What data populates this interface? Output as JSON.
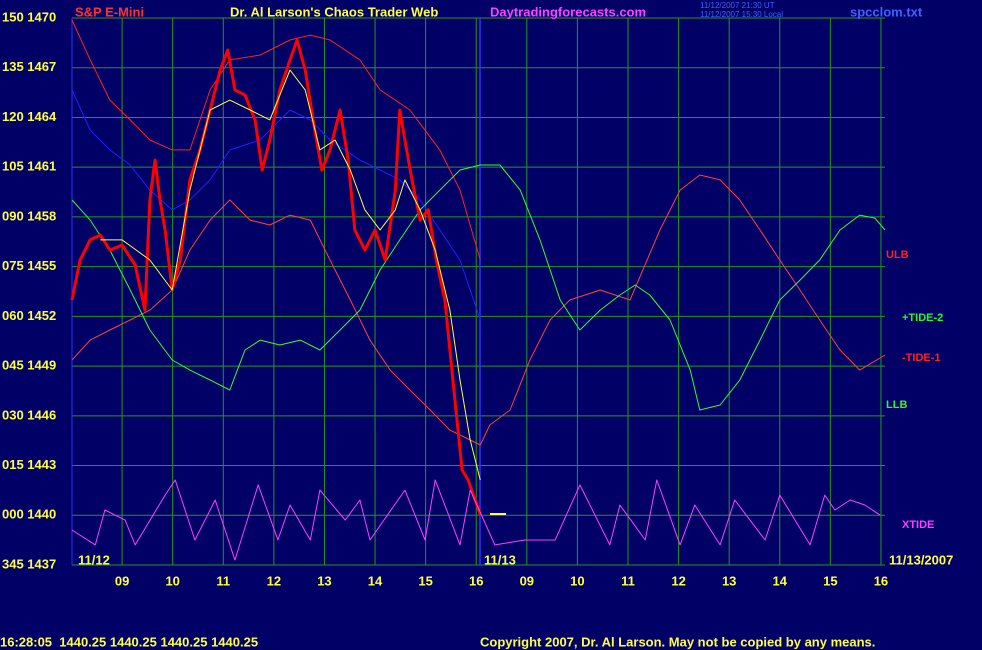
{
  "chart_data": {
    "type": "line",
    "instrument": "S&P E-Mini",
    "title": "Dr. Al Larson's Chaos Trader Web",
    "website": "Daytradingforecasts.com",
    "timestamp_lines": [
      "11/12/2007 21:30 UT",
      "11/12/2007 15:30 Local"
    ],
    "file": "spcclom.txt",
    "date_labels": [
      "11/12",
      "11/13",
      "11/13/2007"
    ],
    "status_line": "16:28:05  1440.25 1440.25 1440.25 1440.25",
    "copyright": "Copyright 2007, Dr. Al Larson. May not be copied by any means.",
    "annotations": [
      {
        "text": "ULB",
        "color": "#ff2020"
      },
      {
        "text": "+TIDE-2",
        "color": "#20ff20"
      },
      {
        "text": "-TIDE-1",
        "color": "#ff2020"
      },
      {
        "text": "LLB",
        "color": "#20ff20"
      },
      {
        "text": "XTIDE",
        "color": "#ff40ff"
      }
    ],
    "grid": true,
    "grid_color": "#1f9a1f",
    "xlim": [
      -0.99,
      15.08
    ],
    "ylim": [
      1437,
      1470
    ],
    "xticks": [
      {
        "value": 0,
        "label": "09"
      },
      {
        "value": 1,
        "label": "10"
      },
      {
        "value": 2,
        "label": "11"
      },
      {
        "value": 3,
        "label": "12"
      },
      {
        "value": 4,
        "label": "13"
      },
      {
        "value": 5,
        "label": "14"
      },
      {
        "value": 6,
        "label": "15"
      },
      {
        "value": 7,
        "label": "16"
      },
      {
        "value": 8,
        "label": "09"
      },
      {
        "value": 9,
        "label": "10"
      },
      {
        "value": 10,
        "label": "11"
      },
      {
        "value": 11,
        "label": "12"
      },
      {
        "value": 12,
        "label": "13"
      },
      {
        "value": 13,
        "label": "14"
      },
      {
        "value": 14,
        "label": "15"
      },
      {
        "value": 15,
        "label": "16"
      }
    ],
    "yticks": [
      {
        "value": 1470,
        "label": "150 1470"
      },
      {
        "value": 1467,
        "label": "135 1467"
      },
      {
        "value": 1464,
        "label": "120 1464"
      },
      {
        "value": 1461,
        "label": "105 1461"
      },
      {
        "value": 1458,
        "label": "090 1458"
      },
      {
        "value": 1455,
        "label": "075 1455"
      },
      {
        "value": 1452,
        "label": "060 1452"
      },
      {
        "value": 1449,
        "label": "045 1449"
      },
      {
        "value": 1446,
        "label": "030 1446"
      },
      {
        "value": 1443,
        "label": "015 1443"
      },
      {
        "value": 1440,
        "label": "000 1440"
      },
      {
        "value": 1437,
        "label": "345 1437"
      }
    ],
    "series": [
      {
        "color": "#ff4040",
        "width": 1,
        "x": [
          -0.99,
          -0.63,
          -0.24,
          0.16,
          0.55,
          0.99,
          1.34,
          1.74,
          2.13,
          2.53,
          2.92,
          3.32,
          3.72,
          4.11,
          4.51,
          4.9,
          5.3,
          5.69,
          6.09,
          6.48,
          6.88,
          7.08,
          7.27,
          7.67,
          8.06,
          8.46,
          8.85,
          9.45,
          10.04,
          10.63,
          11.03,
          11.42,
          11.82,
          12.21,
          12.61,
          13.0,
          13.4,
          13.79,
          14.19,
          14.58,
          15.08
        ],
        "values": [
          1449.37,
          1450.57,
          1451.18,
          1451.78,
          1452.38,
          1453.59,
          1456.0,
          1457.81,
          1459.02,
          1457.81,
          1457.51,
          1458.11,
          1457.81,
          1455.4,
          1452.99,
          1450.57,
          1448.76,
          1447.56,
          1446.35,
          1445.14,
          1444.54,
          1444.24,
          1445.45,
          1446.35,
          1449.37,
          1451.78,
          1452.99,
          1453.59,
          1452.99,
          1457.21,
          1459.62,
          1460.53,
          1460.23,
          1459.02,
          1457.21,
          1455.4,
          1453.59,
          1451.78,
          1449.97,
          1448.76,
          1449.67
        ]
      },
      {
        "color": "#ff2020",
        "width": 1,
        "x": [
          -0.99,
          -0.63,
          -0.24,
          0.16,
          0.55,
          0.99,
          1.34,
          1.74,
          2.13,
          2.73,
          3.32,
          3.72,
          4.11,
          4.7,
          5.1,
          5.69,
          6.28,
          6.68,
          7.08
        ],
        "values": [
          1469.88,
          1467.47,
          1465.05,
          1463.85,
          1462.64,
          1462.04,
          1462.04,
          1465.66,
          1467.47,
          1467.77,
          1468.67,
          1468.97,
          1468.67,
          1467.47,
          1465.66,
          1464.45,
          1462.04,
          1459.62,
          1455.4
        ]
      },
      {
        "color": "#30ff30",
        "width": 1,
        "x": [
          -0.99,
          -0.63,
          -0.24,
          0.16,
          0.55,
          0.99,
          1.34,
          1.74,
          2.13,
          2.43,
          2.73,
          3.12,
          3.52,
          3.91,
          4.31,
          4.7,
          5.1,
          5.49,
          5.89,
          6.28,
          6.68,
          7.08,
          7.47,
          7.87,
          8.26,
          8.66,
          9.05,
          9.45,
          9.84,
          10.14,
          10.43,
          10.83,
          11.23,
          11.42,
          11.82,
          12.21,
          12.61,
          13.0,
          13.4,
          13.79,
          14.19,
          14.58,
          14.88,
          15.08
        ],
        "values": [
          1459.02,
          1457.81,
          1456.0,
          1453.59,
          1451.18,
          1449.37,
          1448.76,
          1448.16,
          1447.56,
          1449.97,
          1450.57,
          1450.27,
          1450.57,
          1449.97,
          1451.18,
          1452.38,
          1454.8,
          1456.61,
          1458.42,
          1459.62,
          1460.83,
          1461.13,
          1461.13,
          1459.62,
          1456.61,
          1452.99,
          1451.18,
          1452.38,
          1453.29,
          1453.89,
          1453.29,
          1451.78,
          1448.76,
          1446.35,
          1446.65,
          1448.16,
          1450.57,
          1452.99,
          1454.19,
          1455.4,
          1457.21,
          1458.11,
          1457.93,
          1457.21
        ]
      },
      {
        "color": "#2020ff",
        "width": 1,
        "x": [
          -0.99,
          -0.63,
          -0.24,
          0.16,
          0.55,
          0.99,
          1.34,
          1.74,
          2.13,
          2.73,
          3.32,
          3.72,
          4.11,
          4.7,
          5.1,
          5.49,
          5.89,
          6.28,
          6.68,
          7.08
        ],
        "values": [
          1465.66,
          1463.24,
          1462.04,
          1461.13,
          1459.62,
          1458.42,
          1459.02,
          1460.23,
          1462.04,
          1462.64,
          1464.45,
          1463.85,
          1462.64,
          1461.43,
          1460.83,
          1460.23,
          1459.02,
          1457.21,
          1455.4,
          1451.78
        ]
      },
      {
        "color": "#ff0000",
        "width": 3,
        "x": [
          -0.99,
          -0.83,
          -0.63,
          -0.43,
          -0.24,
          0,
          0.26,
          0.45,
          0.55,
          0.65,
          0.75,
          0.85,
          0.99,
          1.15,
          1.34,
          1.54,
          1.74,
          1.94,
          2.09,
          2.23,
          2.43,
          2.63,
          2.77,
          2.92,
          3.12,
          3.32,
          3.46,
          3.62,
          3.81,
          3.95,
          4.11,
          4.31,
          4.47,
          4.6,
          4.8,
          5.0,
          5.2,
          5.4,
          5.49,
          5.59,
          5.73,
          5.89,
          6.05,
          6.21,
          6.38,
          6.52,
          6.64,
          6.72,
          6.84,
          6.98,
          7.08
        ],
        "values": [
          1452.99,
          1455.4,
          1456.61,
          1456.91,
          1456.0,
          1456.3,
          1455.1,
          1452.38,
          1459.02,
          1461.43,
          1459.02,
          1457.21,
          1453.59,
          1455.4,
          1460.23,
          1462.04,
          1464.45,
          1466.86,
          1468.07,
          1465.66,
          1465.35,
          1463.85,
          1460.83,
          1462.64,
          1465.66,
          1467.47,
          1468.67,
          1466.86,
          1463.24,
          1460.83,
          1462.04,
          1464.45,
          1461.43,
          1457.21,
          1456.0,
          1457.21,
          1455.4,
          1459.62,
          1464.45,
          1462.64,
          1460.23,
          1457.81,
          1458.42,
          1455.4,
          1452.99,
          1448.76,
          1445.14,
          1442.73,
          1442.13,
          1440.92,
          1440.02
        ]
      },
      {
        "color": "#ffff40",
        "width": 1,
        "x": [
          -0.43,
          0,
          0.55,
          0.99,
          1.34,
          1.74,
          2.13,
          2.53,
          2.92,
          3.32,
          3.62,
          3.91,
          4.21,
          4.51,
          4.8,
          5.1,
          5.4,
          5.59,
          5.89,
          6.19,
          6.48,
          6.68,
          6.88,
          7.08
        ],
        "values": [
          1456.61,
          1456.61,
          1455.4,
          1453.59,
          1459.62,
          1464.45,
          1465.05,
          1464.45,
          1463.85,
          1466.86,
          1465.66,
          1462.04,
          1462.64,
          1460.83,
          1458.42,
          1457.21,
          1458.42,
          1460.23,
          1458.42,
          1456.0,
          1452.38,
          1448.16,
          1444.54,
          1442.13
        ]
      },
      {
        "color": "#ff40ff",
        "width": 1,
        "x": [
          -0.99,
          -0.53,
          -0.34,
          0.06,
          0.26,
          0.85,
          1.05,
          1.44,
          1.84,
          2.23,
          2.69,
          3.08,
          3.32,
          3.72,
          3.91,
          4.41,
          4.7,
          4.9,
          5.59,
          5.99,
          6.19,
          6.68,
          6.88,
          7.37,
          7.96,
          8.56,
          9.05,
          9.64,
          9.84,
          10.34,
          10.57,
          11.03,
          11.32,
          11.82,
          12.11,
          12.71,
          13.0,
          13.6,
          13.89,
          14.09,
          14.39,
          14.68,
          14.98
        ],
        "values": [
          1439.11,
          1438.21,
          1440.32,
          1439.71,
          1438.21,
          1441.22,
          1442.13,
          1438.51,
          1440.92,
          1437.3,
          1441.83,
          1438.51,
          1440.62,
          1438.51,
          1441.52,
          1439.71,
          1440.92,
          1438.51,
          1441.52,
          1438.51,
          1442.13,
          1438.21,
          1441.52,
          1438.21,
          1438.51,
          1438.51,
          1441.83,
          1438.21,
          1440.62,
          1438.51,
          1442.13,
          1438.21,
          1440.62,
          1438.21,
          1440.92,
          1438.51,
          1441.22,
          1438.21,
          1441.22,
          1440.32,
          1440.92,
          1440.62,
          1440.02
        ]
      }
    ]
  }
}
